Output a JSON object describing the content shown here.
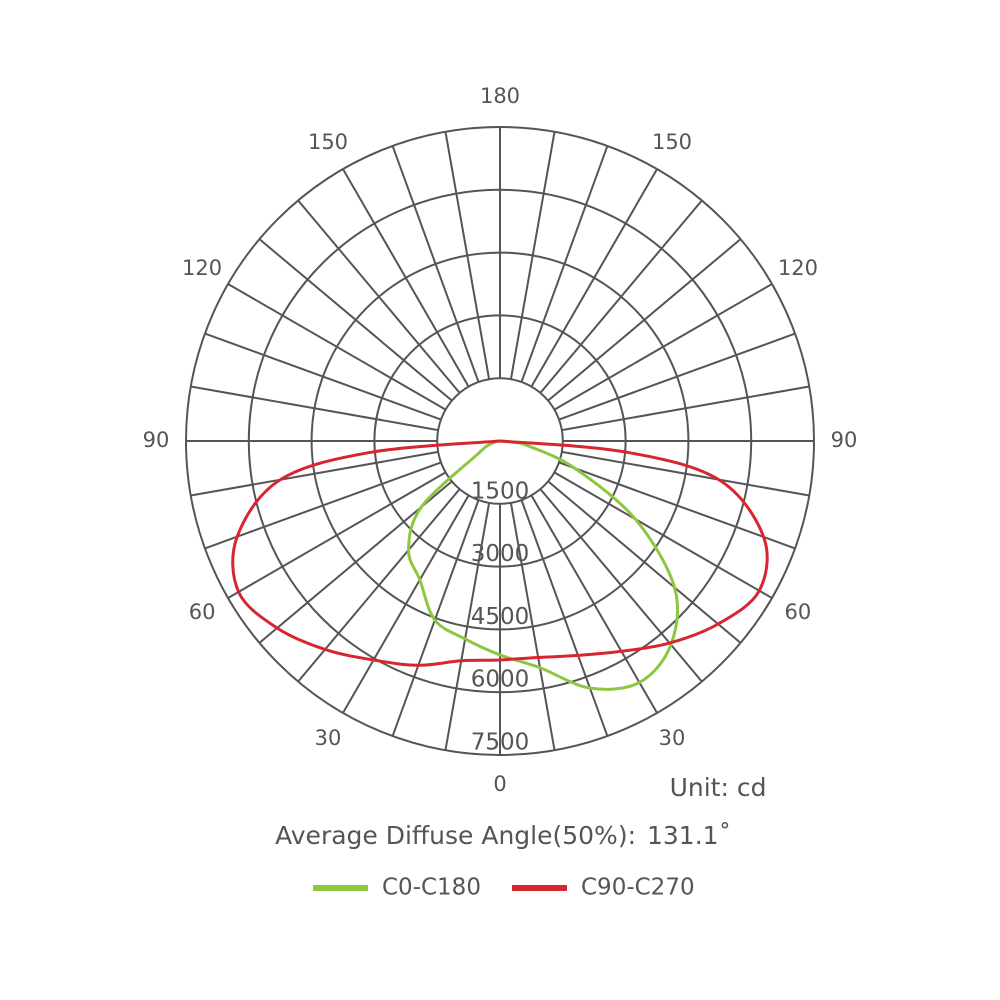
{
  "chart_data": {
    "type": "polar",
    "rlim": [
      0,
      7500
    ],
    "rticks": [
      1500,
      3000,
      4500,
      6000,
      7500
    ],
    "thetalim": [
      -180,
      180
    ],
    "thetagrid": [
      0,
      10,
      20,
      30,
      40,
      50,
      60,
      70,
      80,
      90,
      100,
      110,
      120,
      130,
      140,
      150,
      160,
      170,
      180
    ],
    "thetaticks": [
      {
        "value": -150,
        "label": "150"
      },
      {
        "value": -120,
        "label": "120"
      },
      {
        "value": -90,
        "label": "90"
      },
      {
        "value": -60,
        "label": "60"
      },
      {
        "value": -30,
        "label": "30"
      },
      0,
      30,
      60,
      90,
      120,
      150,
      180
    ],
    "grid_color": "#555555",
    "theta": [
      -90,
      -85,
      -80,
      -70,
      -60,
      -50,
      -40,
      -30,
      -20,
      -10,
      0,
      10,
      20,
      30,
      40,
      50,
      60,
      70,
      80,
      85,
      90
    ],
    "series": [
      {
        "name": "C0-C180",
        "color": "#8dc63f",
        "values": [
          0,
          50,
          100,
          300,
          600,
          2450,
          3400,
          3830,
          4550,
          4800,
          5110,
          5500,
          6280,
          6660,
          6350,
          5440,
          3730,
          1900,
          700,
          300,
          0
        ]
      },
      {
        "name": "C90-C270",
        "color": "#d7262f",
        "values": [
          0,
          3100,
          5330,
          6680,
          7210,
          6950,
          6500,
          6040,
          5700,
          5330,
          5230,
          5250,
          5450,
          5800,
          6300,
          6800,
          7150,
          6700,
          5300,
          3000,
          0
        ]
      }
    ],
    "unit_label": "Unit: cd",
    "annotations": [
      "Average Diffuse Angle(50%):",
      "131.1˚"
    ],
    "legend": "bottom"
  }
}
